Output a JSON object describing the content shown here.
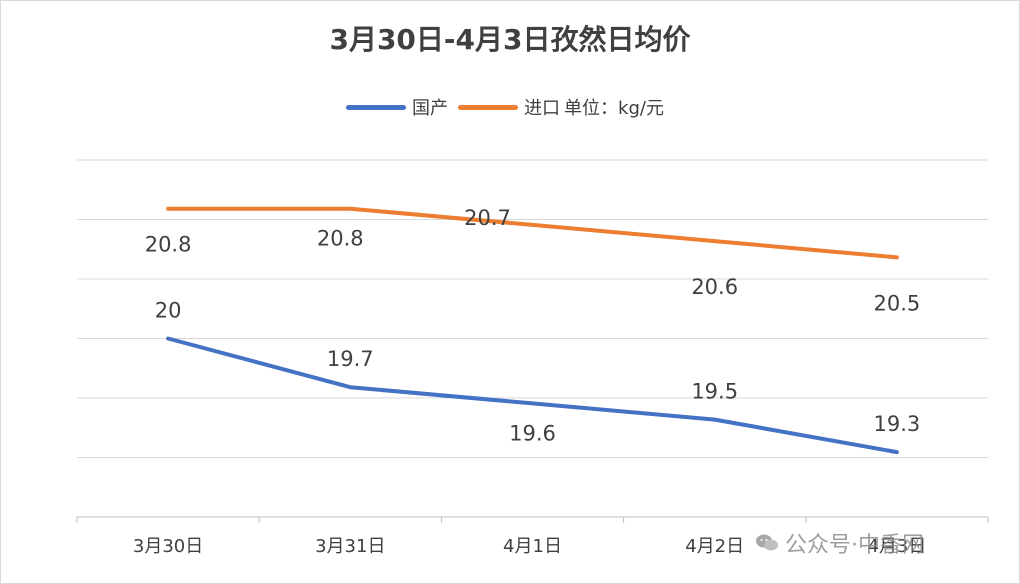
{
  "chart_data": {
    "type": "line",
    "title": "3月30日-4月3日孜然日均价",
    "categories": [
      "3月30日",
      "3月31日",
      "4月1日",
      "4月2日",
      "4月3日"
    ],
    "series": [
      {
        "name": "国产",
        "color": "#4472C4",
        "values": [
          20,
          19.7,
          19.6,
          19.5,
          19.3
        ],
        "labels": [
          "20",
          "19.7",
          "19.6",
          "19.5",
          "19.3"
        ]
      },
      {
        "name": "进口",
        "color": "#ED7D31",
        "values": [
          20.8,
          20.8,
          20.7,
          20.6,
          20.5
        ],
        "labels": [
          "20.8",
          "20.8",
          "20.7",
          "20.6",
          "20.5"
        ]
      }
    ],
    "unit_note": "单位：kg/元",
    "ylim": [
      18.9,
      21.1
    ],
    "grid": true,
    "legend": "top"
  },
  "watermark": {
    "text": "公众号·中香网"
  }
}
